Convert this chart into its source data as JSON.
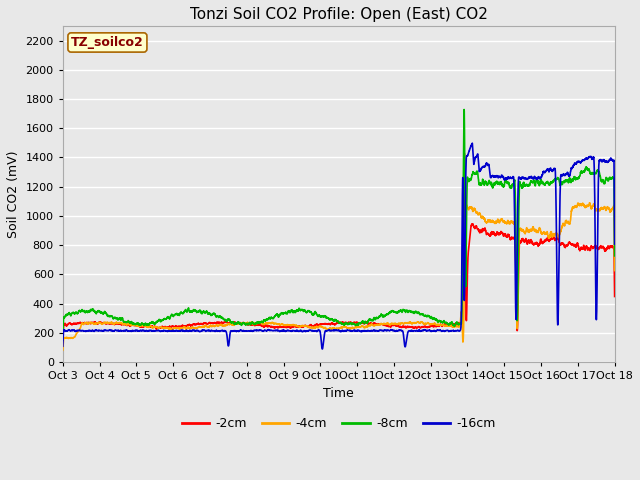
{
  "title": "Tonzi Soil CO2 Profile: Open (East) CO2",
  "ylabel": "Soil CO2 (mV)",
  "xlabel": "Time",
  "watermark": "TZ_soilco2",
  "ylim": [
    0,
    2300
  ],
  "yticks": [
    0,
    200,
    400,
    600,
    800,
    1000,
    1200,
    1400,
    1600,
    1800,
    2000,
    2200
  ],
  "xtick_labels": [
    "Oct 3",
    "Oct 4",
    "Oct 5",
    "Oct 6",
    "Oct 7",
    "Oct 8",
    "Oct 9",
    "Oct 10",
    "Oct 11",
    "Oct 12",
    "Oct 13",
    "Oct 14",
    "Oct 15",
    "Oct 16",
    "Oct 17",
    "Oct 18"
  ],
  "colors": {
    "-2cm": "#ff0000",
    "-4cm": "#ffa500",
    "-8cm": "#00bb00",
    "-16cm": "#0000cc"
  },
  "legend_labels": [
    "-2cm",
    "-4cm",
    "-8cm",
    "-16cm"
  ],
  "bg_color": "#e8e8e8",
  "grid_color": "#ffffff",
  "title_fontsize": 11,
  "tick_fontsize": 8,
  "label_fontsize": 9
}
